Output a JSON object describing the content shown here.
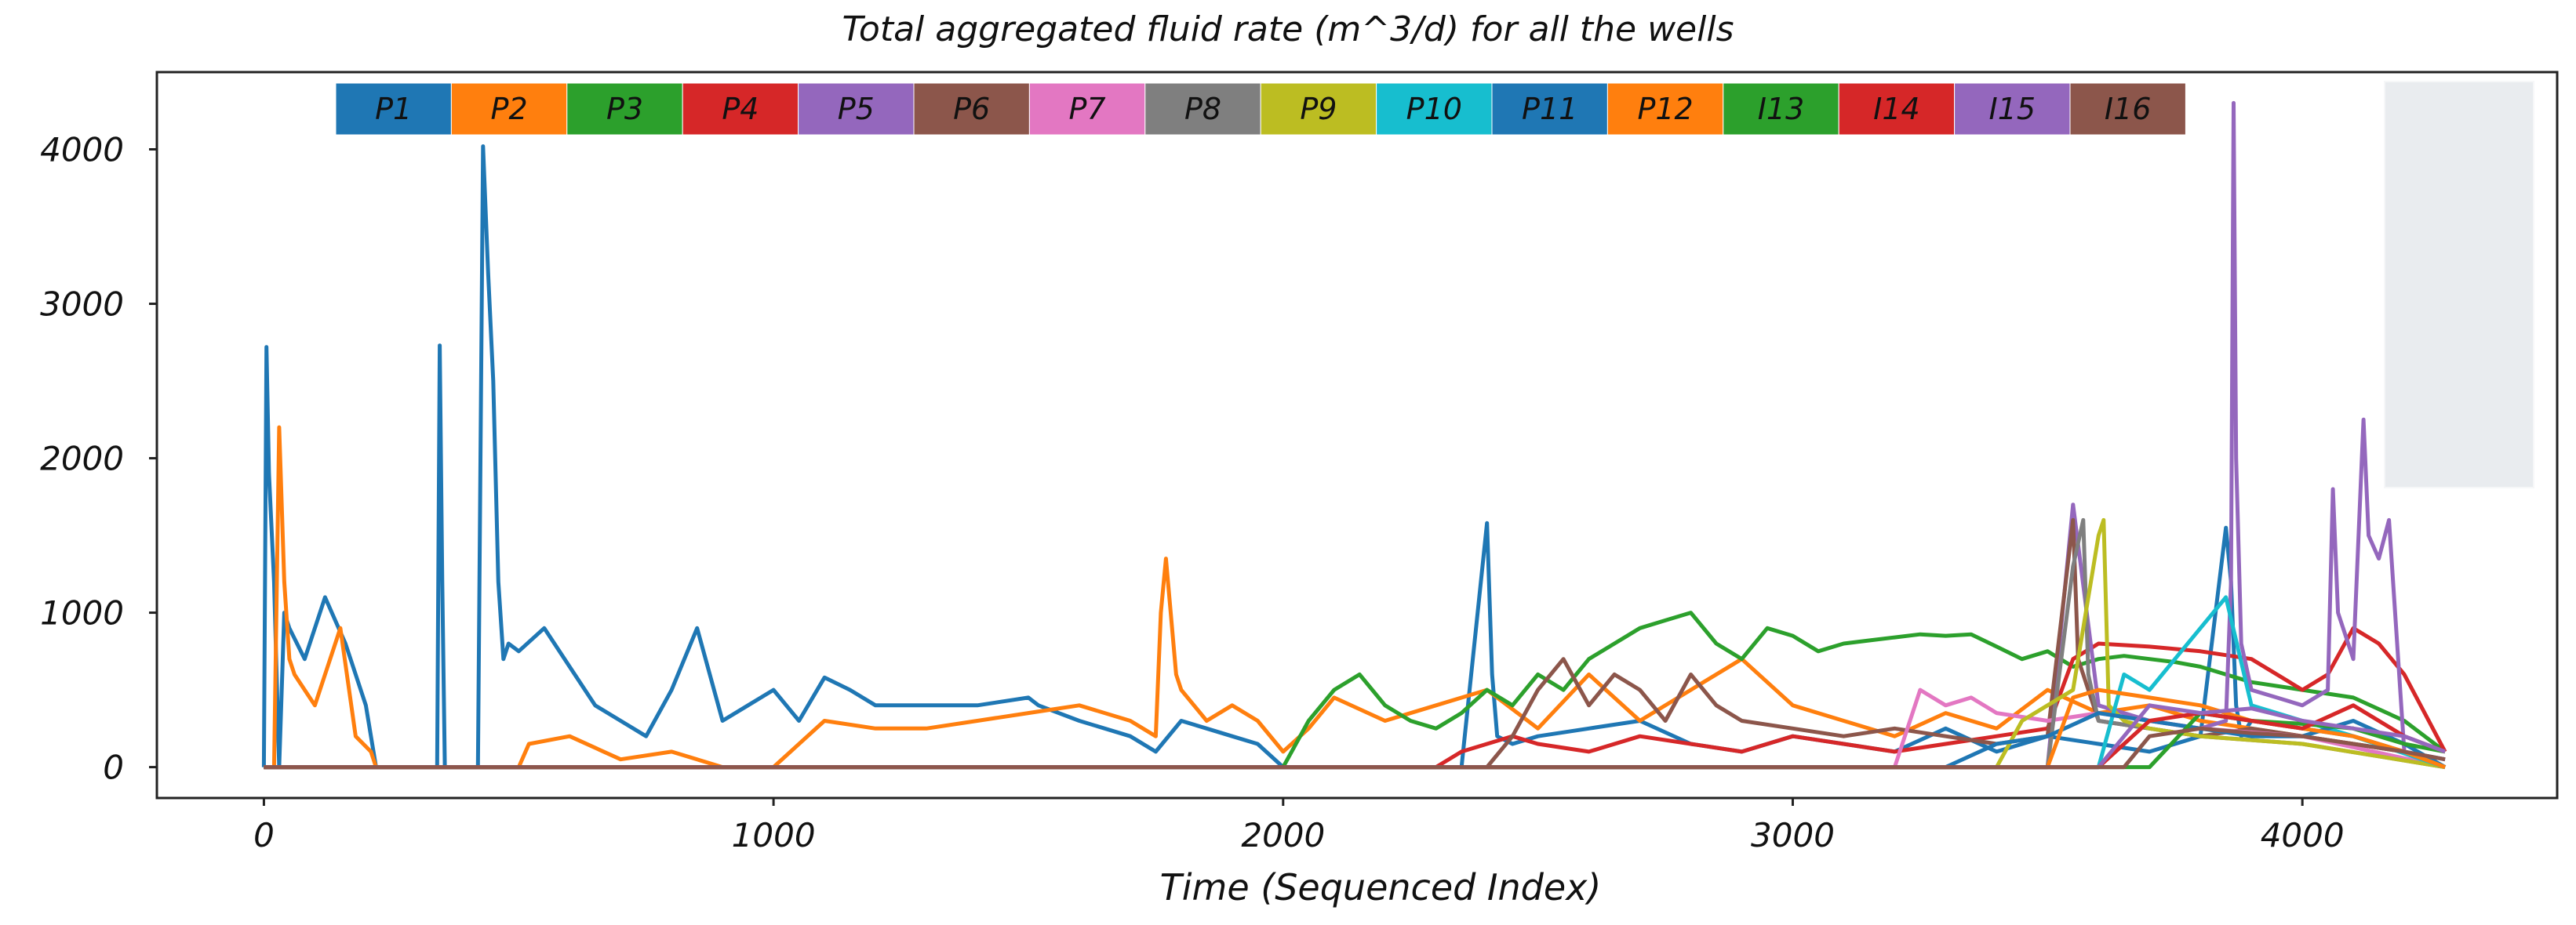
{
  "chart_data": {
    "type": "line",
    "title": "Total aggregated fluid rate (m^3/d) for all the wells",
    "xlabel": "Time (Sequenced Index)",
    "ylabel": "",
    "xlim": [
      -210,
      4500
    ],
    "ylim": [
      -200,
      4500
    ],
    "xticks": [
      0,
      1000,
      2000,
      3000,
      4000
    ],
    "xtick_labels": [
      "0",
      "1000",
      "2000",
      "3000",
      "4000"
    ],
    "yticks": [
      0,
      1000,
      2000,
      3000,
      4000
    ],
    "ytick_labels": [
      "0",
      "1000",
      "2000",
      "3000",
      "4000"
    ],
    "grid": false,
    "legend_position": "top",
    "series": [
      {
        "name": "P1",
        "color": "#1f77b4",
        "x": [
          0,
          5,
          10,
          20,
          30,
          40,
          50,
          80,
          120,
          160,
          200,
          220,
          340,
          345,
          350,
          355,
          360,
          420,
          430,
          440,
          450,
          460,
          470,
          480,
          500,
          550,
          600,
          650,
          700,
          750,
          800,
          850,
          900,
          950,
          1000,
          1050,
          1100,
          1150,
          1200,
          1300,
          1400,
          1500,
          1520,
          1600,
          1700,
          1750,
          1800,
          1850,
          1900,
          1950,
          2000,
          2050,
          2100,
          2200,
          2300,
          2350,
          2400,
          2410,
          2420,
          2450,
          2500,
          2600,
          2700,
          2800,
          2900,
          3000,
          3100,
          3200,
          3300,
          3400,
          3500,
          3600,
          3700,
          3800,
          3850,
          3860,
          3870,
          3880,
          3900,
          4000,
          4100,
          4200,
          4280
        ],
        "y": [
          0,
          2720,
          1900,
          1200,
          0,
          1000,
          900,
          700,
          1100,
          800,
          400,
          0,
          0,
          2730,
          1200,
          0,
          0,
          0,
          4020,
          3200,
          2500,
          1200,
          700,
          800,
          750,
          900,
          650,
          400,
          300,
          200,
          500,
          900,
          300,
          400,
          500,
          300,
          580,
          500,
          400,
          400,
          400,
          450,
          400,
          300,
          200,
          100,
          300,
          250,
          200,
          150,
          0,
          0,
          0,
          0,
          0,
          0,
          1580,
          600,
          200,
          150,
          200,
          250,
          300,
          150,
          100,
          200,
          150,
          100,
          250,
          100,
          200,
          150,
          100,
          200,
          1550,
          1200,
          400,
          200,
          300,
          250,
          200,
          100,
          50
        ]
      },
      {
        "name": "P2",
        "color": "#ff7f0e",
        "x": [
          0,
          20,
          30,
          40,
          50,
          60,
          80,
          100,
          120,
          150,
          180,
          210,
          220,
          500,
          520,
          600,
          700,
          800,
          900,
          1000,
          1100,
          1200,
          1300,
          1400,
          1500,
          1600,
          1700,
          1750,
          1760,
          1770,
          1790,
          1800,
          1850,
          1900,
          1950,
          2000,
          2050,
          2100,
          2200,
          2300,
          2400,
          2500,
          2600,
          2700,
          2800,
          2900,
          3000,
          3100,
          3200,
          3300,
          3400,
          3500,
          3600,
          3700,
          3800,
          3900,
          4000,
          4100,
          4200,
          4280
        ],
        "y": [
          0,
          0,
          2200,
          1200,
          700,
          600,
          500,
          400,
          600,
          900,
          200,
          100,
          0,
          0,
          150,
          200,
          50,
          100,
          0,
          0,
          300,
          250,
          250,
          300,
          350,
          400,
          300,
          200,
          1000,
          1350,
          600,
          500,
          300,
          400,
          300,
          100,
          250,
          450,
          300,
          400,
          500,
          250,
          600,
          300,
          500,
          700,
          400,
          300,
          200,
          350,
          250,
          500,
          350,
          400,
          300,
          250,
          200,
          150,
          100,
          0
        ]
      },
      {
        "name": "P3",
        "color": "#2ca02c",
        "x": [
          0,
          2000,
          2050,
          2100,
          2150,
          2200,
          2250,
          2300,
          2350,
          2400,
          2450,
          2500,
          2550,
          2600,
          2650,
          2700,
          2750,
          2800,
          2850,
          2900,
          2950,
          3000,
          3050,
          3100,
          3150,
          3200,
          3250,
          3300,
          3350,
          3400,
          3450,
          3500,
          3550,
          3600,
          3650,
          3700,
          3750,
          3800,
          3850,
          3900,
          4000,
          4100,
          4200,
          4280
        ],
        "y": [
          0,
          0,
          300,
          500,
          600,
          400,
          300,
          250,
          350,
          500,
          400,
          600,
          500,
          700,
          800,
          900,
          950,
          1000,
          800,
          700,
          900,
          850,
          750,
          800,
          820,
          840,
          860,
          850,
          860,
          780,
          700,
          750,
          650,
          700,
          720,
          700,
          680,
          650,
          600,
          550,
          500,
          450,
          300,
          100
        ]
      },
      {
        "name": "P4",
        "color": "#d62728",
        "x": [
          0,
          2300,
          2350,
          2400,
          2450,
          2500,
          2600,
          2700,
          2800,
          2900,
          3000,
          3100,
          3200,
          3300,
          3400,
          3500,
          3550,
          3600,
          3700,
          3800,
          3900,
          4000,
          4050,
          4100,
          4150,
          4200,
          4280
        ],
        "y": [
          0,
          0,
          100,
          150,
          200,
          150,
          100,
          200,
          150,
          100,
          200,
          150,
          100,
          150,
          200,
          250,
          700,
          800,
          780,
          750,
          700,
          500,
          600,
          900,
          800,
          600,
          100
        ]
      },
      {
        "name": "P5",
        "color": "#9467bd",
        "x": [
          0,
          3500,
          3550,
          3600,
          3700,
          3800,
          3850,
          3860,
          3865,
          3870,
          3880,
          3900,
          3950,
          4000,
          4050,
          4060,
          4070,
          4100,
          4120,
          4130,
          4150,
          4170,
          4200,
          4280
        ],
        "y": [
          0,
          0,
          1700,
          400,
          300,
          250,
          300,
          1200,
          4300,
          2000,
          800,
          500,
          450,
          400,
          500,
          1800,
          1000,
          700,
          2250,
          1500,
          1350,
          1600,
          100,
          50
        ]
      },
      {
        "name": "P6",
        "color": "#8c564b",
        "x": [
          0,
          2400,
          2450,
          2500,
          2550,
          2600,
          2650,
          2700,
          2750,
          2800,
          2850,
          2900,
          3000,
          3100,
          3200,
          3300,
          3400,
          3500,
          3550,
          3560,
          3600,
          3700,
          3800,
          3900,
          4000,
          4100,
          4200,
          4280
        ],
        "y": [
          0,
          0,
          200,
          500,
          700,
          400,
          600,
          500,
          300,
          600,
          400,
          300,
          250,
          200,
          250,
          200,
          150,
          200,
          1600,
          700,
          300,
          250,
          200,
          250,
          200,
          150,
          100,
          0
        ]
      },
      {
        "name": "P7",
        "color": "#e377c2",
        "x": [
          0,
          3200,
          3250,
          3300,
          3350,
          3400,
          3500,
          3600,
          3700,
          3800,
          4000,
          4280
        ],
        "y": [
          0,
          0,
          500,
          400,
          450,
          350,
          300,
          350,
          300,
          250,
          200,
          0
        ]
      },
      {
        "name": "P8",
        "color": "#7f7f7f",
        "x": [
          0,
          3500,
          3550,
          3570,
          3580,
          3600,
          3700,
          3800,
          4000,
          4280
        ],
        "y": [
          0,
          0,
          1300,
          1600,
          600,
          300,
          250,
          200,
          150,
          0
        ]
      },
      {
        "name": "P9",
        "color": "#bcbd22",
        "x": [
          0,
          3400,
          3450,
          3500,
          3550,
          3600,
          3610,
          3620,
          3650,
          3700,
          3800,
          4000,
          4280
        ],
        "y": [
          0,
          0,
          300,
          400,
          500,
          1500,
          1600,
          400,
          300,
          250,
          200,
          150,
          0
        ]
      },
      {
        "name": "P10",
        "color": "#17becf",
        "x": [
          0,
          3600,
          3650,
          3700,
          3750,
          3800,
          3850,
          3900,
          4000,
          4100,
          4280
        ],
        "y": [
          0,
          0,
          600,
          500,
          700,
          900,
          1100,
          400,
          300,
          200,
          0
        ]
      },
      {
        "name": "P11",
        "color": "#1f77b4",
        "x": [
          0,
          3300,
          3400,
          3500,
          3600,
          3700,
          3800,
          3900,
          4000,
          4100,
          4200,
          4280
        ],
        "y": [
          0,
          0,
          150,
          200,
          350,
          300,
          250,
          200,
          200,
          300,
          150,
          0
        ]
      },
      {
        "name": "P12",
        "color": "#ff7f0e",
        "x": [
          0,
          3500,
          3550,
          3600,
          3700,
          3800,
          3850,
          3900,
          4000,
          4100,
          4200,
          4280
        ],
        "y": [
          0,
          0,
          450,
          500,
          450,
          400,
          350,
          300,
          250,
          200,
          100,
          0
        ]
      },
      {
        "name": "I13",
        "color": "#2ca02c",
        "x": [
          0,
          3700,
          3800,
          3900,
          4000,
          4100,
          4200,
          4280
        ],
        "y": [
          0,
          0,
          350,
          300,
          280,
          250,
          150,
          100
        ]
      },
      {
        "name": "I14",
        "color": "#d62728",
        "x": [
          0,
          3600,
          3700,
          3800,
          3900,
          4000,
          4100,
          4200,
          4280
        ],
        "y": [
          0,
          0,
          300,
          350,
          300,
          250,
          400,
          200,
          100
        ]
      },
      {
        "name": "I15",
        "color": "#9467bd",
        "x": [
          0,
          3600,
          3700,
          3800,
          3900,
          4000,
          4100,
          4200,
          4280
        ],
        "y": [
          0,
          0,
          400,
          350,
          380,
          300,
          250,
          200,
          100
        ]
      },
      {
        "name": "I16",
        "color": "#8c564b",
        "x": [
          0,
          3650,
          3700,
          3800,
          3900,
          4000,
          4100,
          4200,
          4280
        ],
        "y": [
          0,
          0,
          200,
          250,
          220,
          200,
          150,
          100,
          50
        ]
      }
    ]
  }
}
